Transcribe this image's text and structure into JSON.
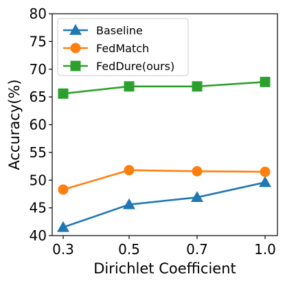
{
  "chart_data": {
    "type": "line",
    "categories": [
      "0.3",
      "0.5",
      "0.7",
      "1.0"
    ],
    "xlabel": "Dirichlet Coefficient",
    "ylabel": "Accuracy(%)",
    "ylim": [
      40,
      80
    ],
    "yticks": [
      40,
      45,
      50,
      55,
      60,
      65,
      70,
      75,
      80
    ],
    "grid": false,
    "legend_position": "top-left",
    "series": [
      {
        "name": "Baseline",
        "values": [
          41.5,
          45.6,
          46.9,
          49.6
        ],
        "color": "#1f77b4",
        "marker": "triangle"
      },
      {
        "name": "FedMatch",
        "values": [
          48.3,
          51.8,
          51.6,
          51.5
        ],
        "color": "#ff7f0e",
        "marker": "circle"
      },
      {
        "name": "FedDure(ours)",
        "values": [
          65.6,
          66.9,
          66.9,
          67.7
        ],
        "color": "#2ca02c",
        "marker": "square"
      }
    ]
  }
}
